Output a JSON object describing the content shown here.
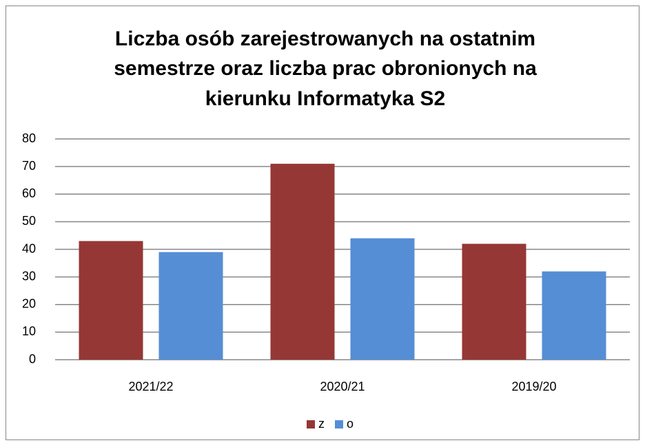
{
  "chart_data": {
    "type": "bar",
    "title": [
      "Liczba osób zarejestrowanych na ostatnim",
      "semestrze oraz liczba prac obronionych na",
      "kierunku Informatyka S2"
    ],
    "categories": [
      "2021/22",
      "2020/21",
      "2019/20"
    ],
    "series": [
      {
        "name": "z",
        "color": "#953735",
        "values": [
          43,
          71,
          42
        ]
      },
      {
        "name": "o",
        "color": "#558ed5",
        "values": [
          39,
          44,
          32
        ]
      }
    ],
    "ylim": [
      0,
      80
    ],
    "yticks": [
      0,
      10,
      20,
      30,
      40,
      50,
      60,
      70,
      80
    ],
    "grid": true,
    "legend": "bottom"
  }
}
